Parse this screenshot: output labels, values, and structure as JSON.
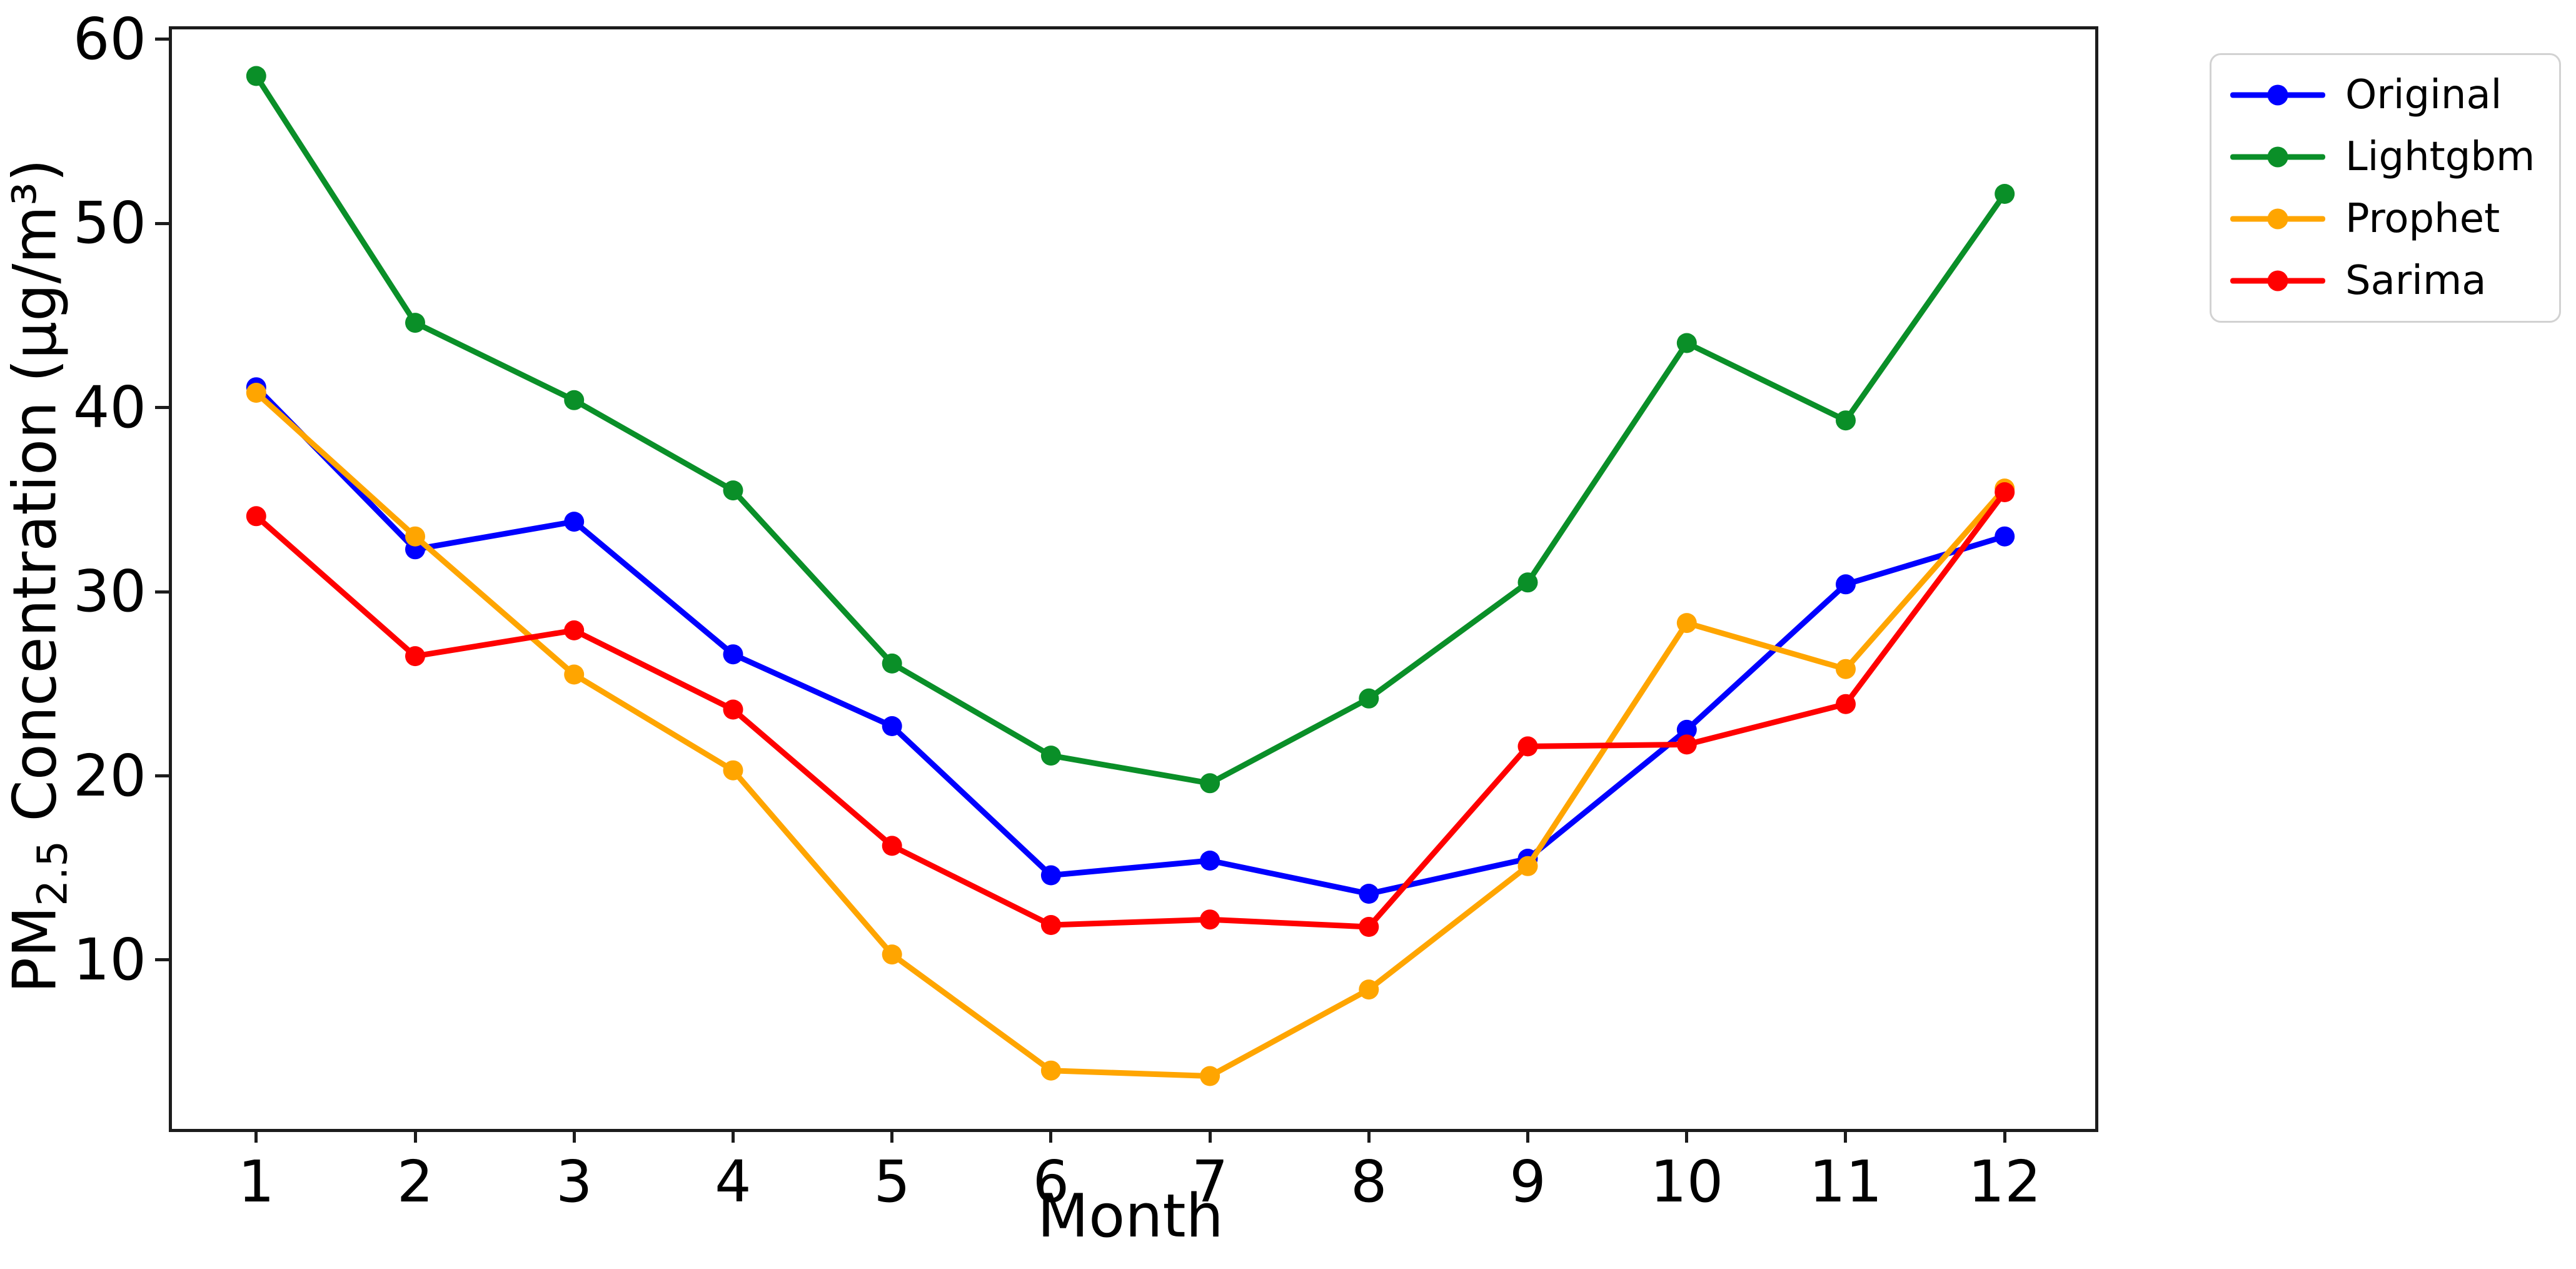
{
  "chart_data": {
    "type": "line",
    "title": "",
    "xlabel": "Month",
    "ylabel": "PM2.5 Concentration (µg/m³)",
    "ylabel_parts": {
      "pm": "PM",
      "sub": "2.5",
      "rest": " Concentration (µg/m³)"
    },
    "x": [
      1,
      2,
      3,
      4,
      5,
      6,
      7,
      8,
      9,
      10,
      11,
      12
    ],
    "x_ticklabels": [
      "1",
      "2",
      "3",
      "4",
      "5",
      "6",
      "7",
      "8",
      "9",
      "10",
      "11",
      "12"
    ],
    "y_ticks": [
      10,
      20,
      30,
      40,
      50,
      60
    ],
    "y_ticklabels": [
      "10",
      "20",
      "30",
      "40",
      "50",
      "60"
    ],
    "xlim": [
      0.45,
      12.55
    ],
    "ylim": [
      1.0,
      60.7
    ],
    "grid": false,
    "legend_position": "outside-upper-right",
    "series": [
      {
        "name": "Original",
        "color": "#0000ff",
        "values": [
          41.1,
          32.3,
          33.8,
          26.6,
          22.7,
          14.6,
          15.4,
          13.6,
          15.5,
          22.5,
          30.4,
          33.0
        ]
      },
      {
        "name": "Lightgbm",
        "color": "#0a8f28",
        "values": [
          58.0,
          44.6,
          40.4,
          35.5,
          26.1,
          21.1,
          19.6,
          24.2,
          30.5,
          43.5,
          39.3,
          51.6
        ]
      },
      {
        "name": "Prophet",
        "color": "#ffa500",
        "values": [
          40.8,
          33.0,
          25.5,
          20.3,
          10.3,
          4.0,
          3.7,
          8.4,
          15.1,
          28.3,
          25.8,
          35.6
        ]
      },
      {
        "name": "Sarima",
        "color": "#ff0000",
        "values": [
          34.1,
          26.5,
          27.9,
          23.6,
          16.2,
          11.9,
          12.2,
          11.8,
          21.6,
          21.7,
          23.9,
          35.4
        ]
      }
    ]
  }
}
